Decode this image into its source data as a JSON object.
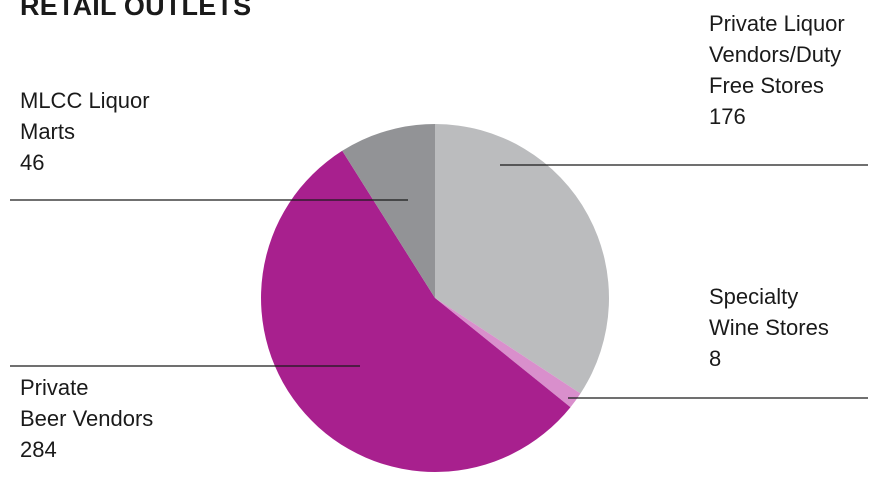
{
  "chart_data": {
    "type": "pie",
    "title": "RETAIL OUTLETS",
    "start_angle": 0,
    "direction": "clockwise",
    "slices": [
      {
        "name_lines": [
          "Private Liquor",
          "Vendors/Duty",
          "Free Stores"
        ],
        "value": 176,
        "value_label": "176",
        "color": "#bbbcbe"
      },
      {
        "name_lines": [
          "Specialty",
          "Wine Stores"
        ],
        "value": 8,
        "value_label": "8",
        "color": "#d98fcc"
      },
      {
        "name_lines": [
          "Private",
          "Beer Vendors"
        ],
        "value": 284,
        "value_label": "284",
        "color": "#a8208e"
      },
      {
        "name_lines": [
          "MLCC Liquor",
          "Marts"
        ],
        "value": 46,
        "value_label": "46",
        "color": "#929396"
      }
    ]
  }
}
